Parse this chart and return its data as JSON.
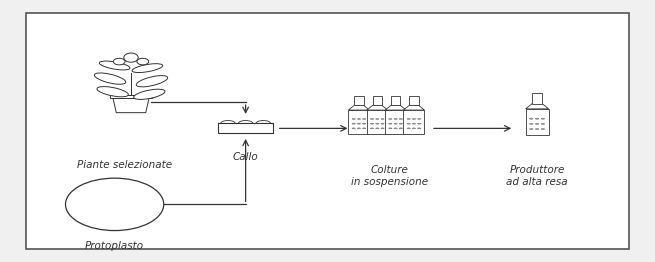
{
  "background_color": "#f0f0f0",
  "border_color": "#555555",
  "labels": {
    "plant": "Piante selezionate",
    "protoplast": "Protoplasto",
    "callo": "Callo",
    "colture": "Colture\nin sospensione",
    "produttore": "Produttore\nad alta resa"
  },
  "font_size": 7.5,
  "line_color": "#333333",
  "fig_width": 6.55,
  "fig_height": 2.62,
  "dpi": 100,
  "border": [
    0.04,
    0.05,
    0.92,
    0.9
  ]
}
